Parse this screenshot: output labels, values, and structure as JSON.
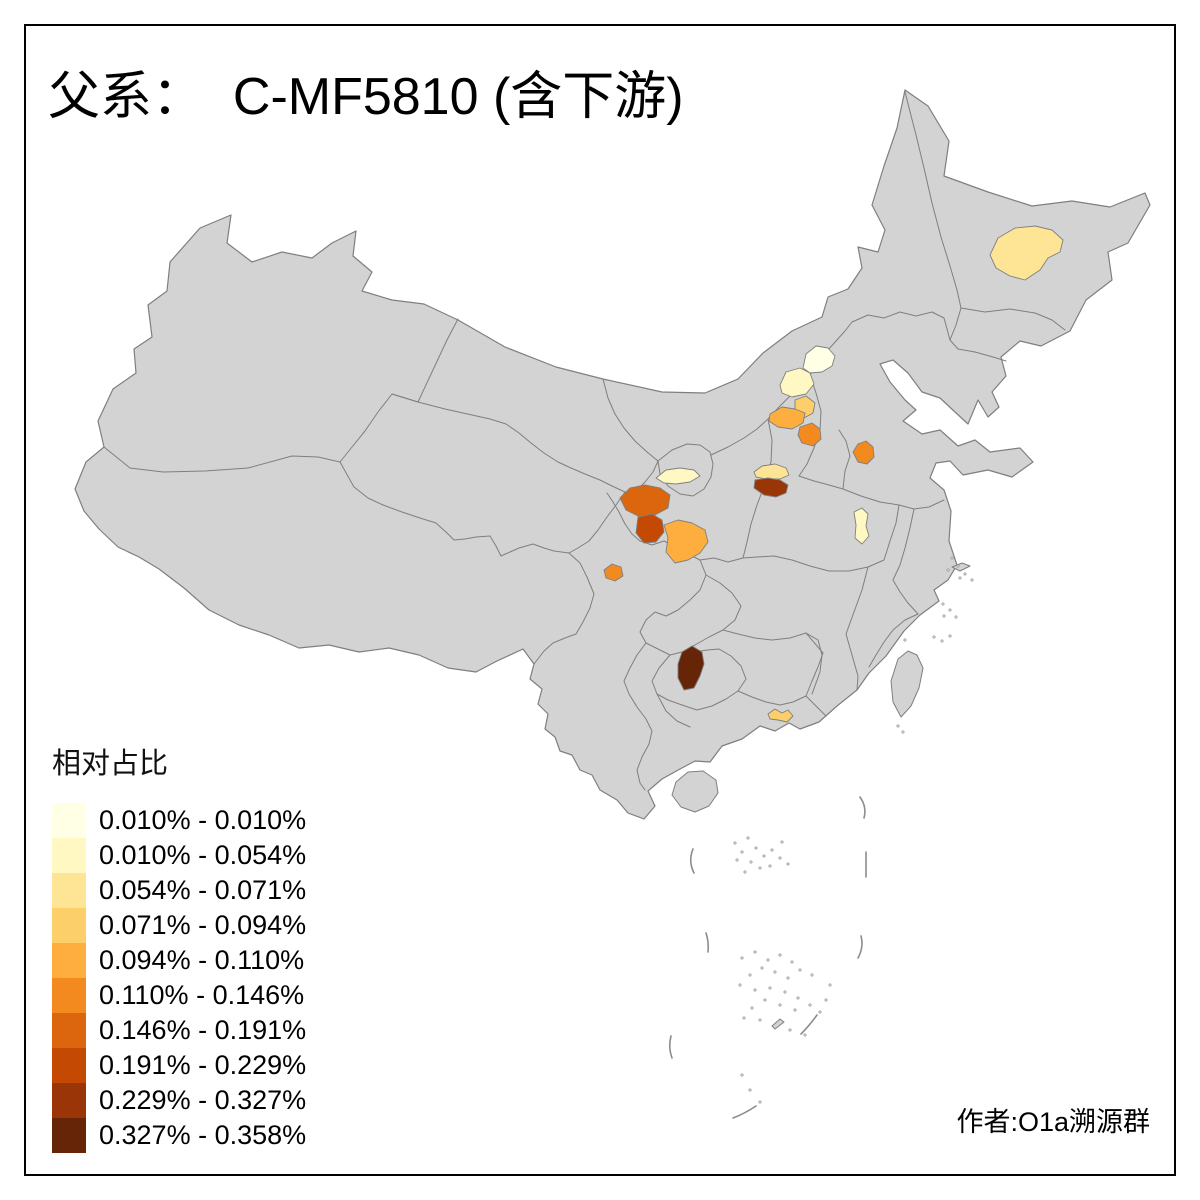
{
  "title": "父系：  C-MF5810 (含下游)",
  "author": "作者:O1a溯源群",
  "legend": {
    "title": "相对占比",
    "items": [
      {
        "label": "0.010% - 0.010%",
        "color": "#FFFFE5"
      },
      {
        "label": "0.010% - 0.054%",
        "color": "#FFF8C2"
      },
      {
        "label": "0.054% - 0.071%",
        "color": "#FEE596"
      },
      {
        "label": "0.071% - 0.094%",
        "color": "#FDCF6B"
      },
      {
        "label": "0.094% - 0.110%",
        "color": "#FDAE3E"
      },
      {
        "label": "0.110% - 0.146%",
        "color": "#F28A20"
      },
      {
        "label": "0.146% - 0.191%",
        "color": "#DC660D"
      },
      {
        "label": "0.191% - 0.229%",
        "color": "#C44A03"
      },
      {
        "label": "0.229% - 0.327%",
        "color": "#993506"
      },
      {
        "label": "0.327% - 0.358%",
        "color": "#662506"
      }
    ]
  },
  "map": {
    "land_color": "#D3D3D3",
    "border_color": "#7F7F7F",
    "background_color": "#FFFFFF",
    "frame_color": "#000000"
  },
  "chart_data": {
    "type": "choropleth",
    "title": "父系： C-MF5810 (含下游)",
    "legend_title": "相对占比",
    "unit": "%",
    "classes": [
      "0.010% - 0.010%",
      "0.010% - 0.054%",
      "0.054% - 0.071%",
      "0.071% - 0.094%",
      "0.094% - 0.110%",
      "0.110% - 0.146%",
      "0.146% - 0.191%",
      "0.191% - 0.229%",
      "0.229% - 0.327%",
      "0.327% - 0.358%"
    ],
    "regions": [
      {
        "id": "heilongjiang-central",
        "class_index": 3,
        "range": "0.054% - 0.071%"
      },
      {
        "id": "beijing",
        "class_index": 1,
        "range": "0.010% - 0.010%"
      },
      {
        "id": "hebei-northwest",
        "class_index": 2,
        "range": "0.010% - 0.054%"
      },
      {
        "id": "hebei-central",
        "class_index": 4,
        "range": "0.071% - 0.094%"
      },
      {
        "id": "shanxi-east",
        "class_index": 5,
        "range": "0.094% - 0.110%"
      },
      {
        "id": "hebei-south",
        "class_index": 6,
        "range": "0.110% - 0.146%"
      },
      {
        "id": "shandong-central",
        "class_index": 6,
        "range": "0.110% - 0.146%"
      },
      {
        "id": "henan-north",
        "class_index": 3,
        "range": "0.054% - 0.071%"
      },
      {
        "id": "henan-zhengzhou",
        "class_index": 9,
        "range": "0.229% - 0.327%"
      },
      {
        "id": "jiangsu-north",
        "class_index": 2,
        "range": "0.010% - 0.054%"
      },
      {
        "id": "gansu-southeast",
        "class_index": 2,
        "range": "0.010% - 0.054%"
      },
      {
        "id": "gansu-longnan",
        "class_index": 7,
        "range": "0.146% - 0.191%"
      },
      {
        "id": "sichuan-north",
        "class_index": 8,
        "range": "0.191% - 0.229%"
      },
      {
        "id": "sichuan-mianyang",
        "class_index": 5,
        "range": "0.094% - 0.110%"
      },
      {
        "id": "sichuan-chengdu",
        "class_index": 6,
        "range": "0.110% - 0.146%"
      },
      {
        "id": "guizhou-southeast",
        "class_index": 10,
        "range": "0.327% - 0.358%"
      },
      {
        "id": "guangdong-coastal",
        "class_index": 4,
        "range": "0.071% - 0.094%"
      }
    ]
  }
}
